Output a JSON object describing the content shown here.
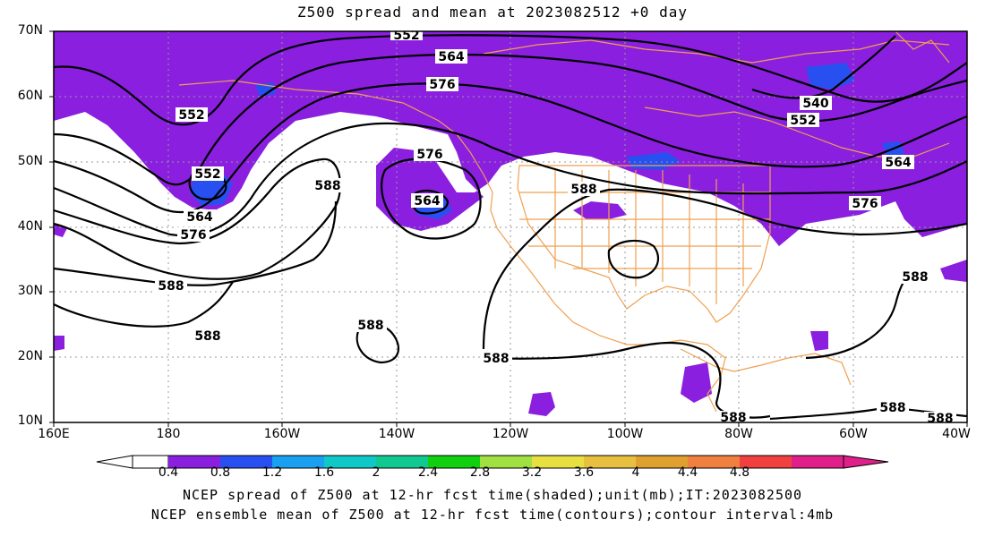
{
  "title": "Z500 spread and mean at 2023082512 +0 day",
  "lat_labels": [
    "70N",
    "60N",
    "50N",
    "40N",
    "30N",
    "20N",
    "10N"
  ],
  "lon_labels": [
    "160E",
    "180",
    "160W",
    "140W",
    "120W",
    "100W",
    "80W",
    "60W",
    "40W"
  ],
  "colorbar": {
    "labels": [
      "0.4",
      "0.8",
      "1.2",
      "1.6",
      "2",
      "2.4",
      "2.8",
      "3.2",
      "3.6",
      "4",
      "4.4",
      "4.8"
    ],
    "colors": [
      "#ffffff",
      "#8a1fe0",
      "#2850f0",
      "#1aa0f0",
      "#10c8c8",
      "#10c890",
      "#10d010",
      "#a0e040",
      "#e8e040",
      "#e8c040",
      "#e0a030",
      "#f08040",
      "#f04040",
      "#e0208a"
    ]
  },
  "contour_labels": [
    "552",
    "564",
    "576",
    "552",
    "552",
    "564",
    "576",
    "576",
    "564",
    "588",
    "588",
    "588",
    "588",
    "588",
    "588",
    "540",
    "552",
    "564",
    "576",
    "588",
    "588",
    "588",
    "588"
  ],
  "captions": [
    "NCEP spread of Z500 at 12-hr fcst time(shaded);unit(mb);IT:2023082500",
    "NCEP ensemble mean of Z500 at 12-hr fcst time(contours);contour interval:4mb"
  ],
  "colors": {
    "spread_fill": "#8a1fe0",
    "spread_high": "#2850f0",
    "coast": "#f0a050",
    "grid": "#999999"
  }
}
